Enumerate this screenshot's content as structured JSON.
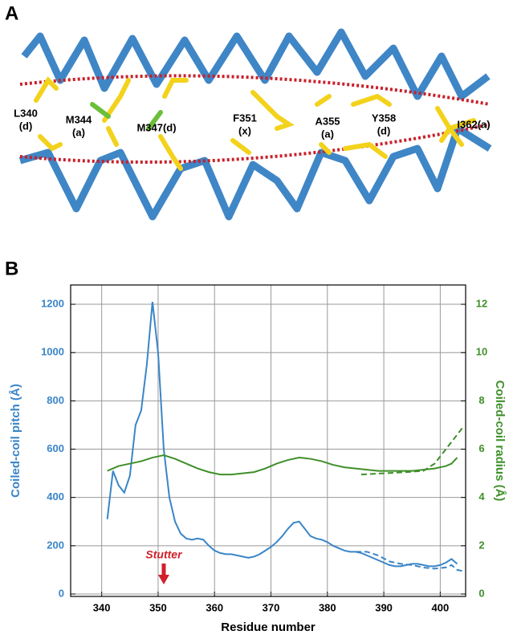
{
  "panel_a": {
    "label": "A",
    "residues": [
      [
        "L340",
        "(d)"
      ],
      [
        "M344",
        "(a)"
      ],
      [
        "M347(d)"
      ],
      [
        "F351",
        "(x)"
      ],
      [
        "A355",
        "(a)"
      ],
      [
        "Y358",
        "(d)"
      ],
      [
        "I362(a)"
      ]
    ]
  },
  "chart_data": {
    "type": "line",
    "panel_label": "B",
    "x_label": "Residue number",
    "y_label": "Coiled-coil pitch (Å)",
    "y2_label": "Coiled-coil radius (Å)",
    "annotation": {
      "text": "Stutter",
      "x": 351,
      "color": "#d0202a"
    },
    "xlim": [
      334.5,
      404.5
    ],
    "xticks": [
      340,
      350,
      360,
      370,
      380,
      390,
      400
    ],
    "ylim": [
      -10,
      1280
    ],
    "yticks": [
      0,
      200,
      400,
      600,
      800,
      1000,
      1200
    ],
    "y2lim": [
      -0.1,
      12.8
    ],
    "y2ticks": [
      0,
      2,
      4,
      6,
      8,
      10,
      12
    ],
    "grid": true,
    "y_color": "#3a85c8",
    "y2_color": "#3f8f2a",
    "series": [
      {
        "color": "#3a85c8",
        "line_style": "solid",
        "x": [
          341,
          342,
          343,
          344,
          345,
          346,
          347,
          348,
          349,
          350,
          351,
          352,
          353,
          354,
          355,
          356,
          357,
          358,
          359,
          360,
          361,
          362,
          363,
          364,
          365,
          366,
          367,
          368,
          369,
          370,
          371,
          372,
          373,
          374,
          375,
          376,
          377,
          378,
          379,
          380,
          381,
          382,
          383,
          384,
          385,
          386,
          387,
          388,
          389,
          390,
          391,
          392,
          393,
          394,
          395,
          396,
          397,
          398,
          399,
          400,
          401,
          402,
          403
        ],
        "values": [
          310,
          510,
          450,
          420,
          490,
          700,
          760,
          950,
          1210,
          1000,
          600,
          400,
          300,
          250,
          230,
          225,
          230,
          225,
          200,
          180,
          170,
          165,
          165,
          160,
          155,
          150,
          155,
          165,
          180,
          195,
          215,
          240,
          270,
          295,
          300,
          270,
          240,
          230,
          225,
          215,
          200,
          190,
          180,
          175,
          175,
          170,
          160,
          150,
          140,
          130,
          120,
          115,
          115,
          120,
          125,
          125,
          120,
          115,
          115,
          120,
          130,
          145,
          125
        ]
      },
      {
        "color": "#3a85c8",
        "line_style": "dashed",
        "x": [
          385,
          387,
          389,
          391,
          393,
          395,
          397,
          399,
          401,
          402,
          403,
          404
        ],
        "values": [
          175,
          175,
          160,
          135,
          125,
          120,
          110,
          105,
          110,
          120,
          100,
          95
        ]
      },
      {
        "color": "#3f8f2a",
        "line_style": "solid",
        "axis": "y2",
        "x": [
          341,
          343,
          345,
          347,
          349,
          351,
          353,
          355,
          357,
          359,
          361,
          363,
          365,
          367,
          369,
          371,
          373,
          375,
          377,
          379,
          381,
          383,
          385,
          387,
          389,
          391,
          393,
          395,
          397,
          399,
          401,
          402,
          403
        ],
        "values": [
          5.1,
          5.3,
          5.4,
          5.5,
          5.65,
          5.75,
          5.6,
          5.4,
          5.2,
          5.05,
          4.95,
          4.95,
          5.0,
          5.05,
          5.2,
          5.4,
          5.55,
          5.65,
          5.6,
          5.5,
          5.35,
          5.25,
          5.2,
          5.15,
          5.1,
          5.1,
          5.1,
          5.1,
          5.15,
          5.2,
          5.3,
          5.4,
          5.65
        ]
      },
      {
        "color": "#3f8f2a",
        "line_style": "dashed",
        "axis": "y2",
        "x": [
          386,
          390,
          394,
          397,
          399,
          401,
          403,
          404
        ],
        "values": [
          4.95,
          5.0,
          5.05,
          5.1,
          5.4,
          6.0,
          6.6,
          6.9
        ]
      }
    ]
  }
}
